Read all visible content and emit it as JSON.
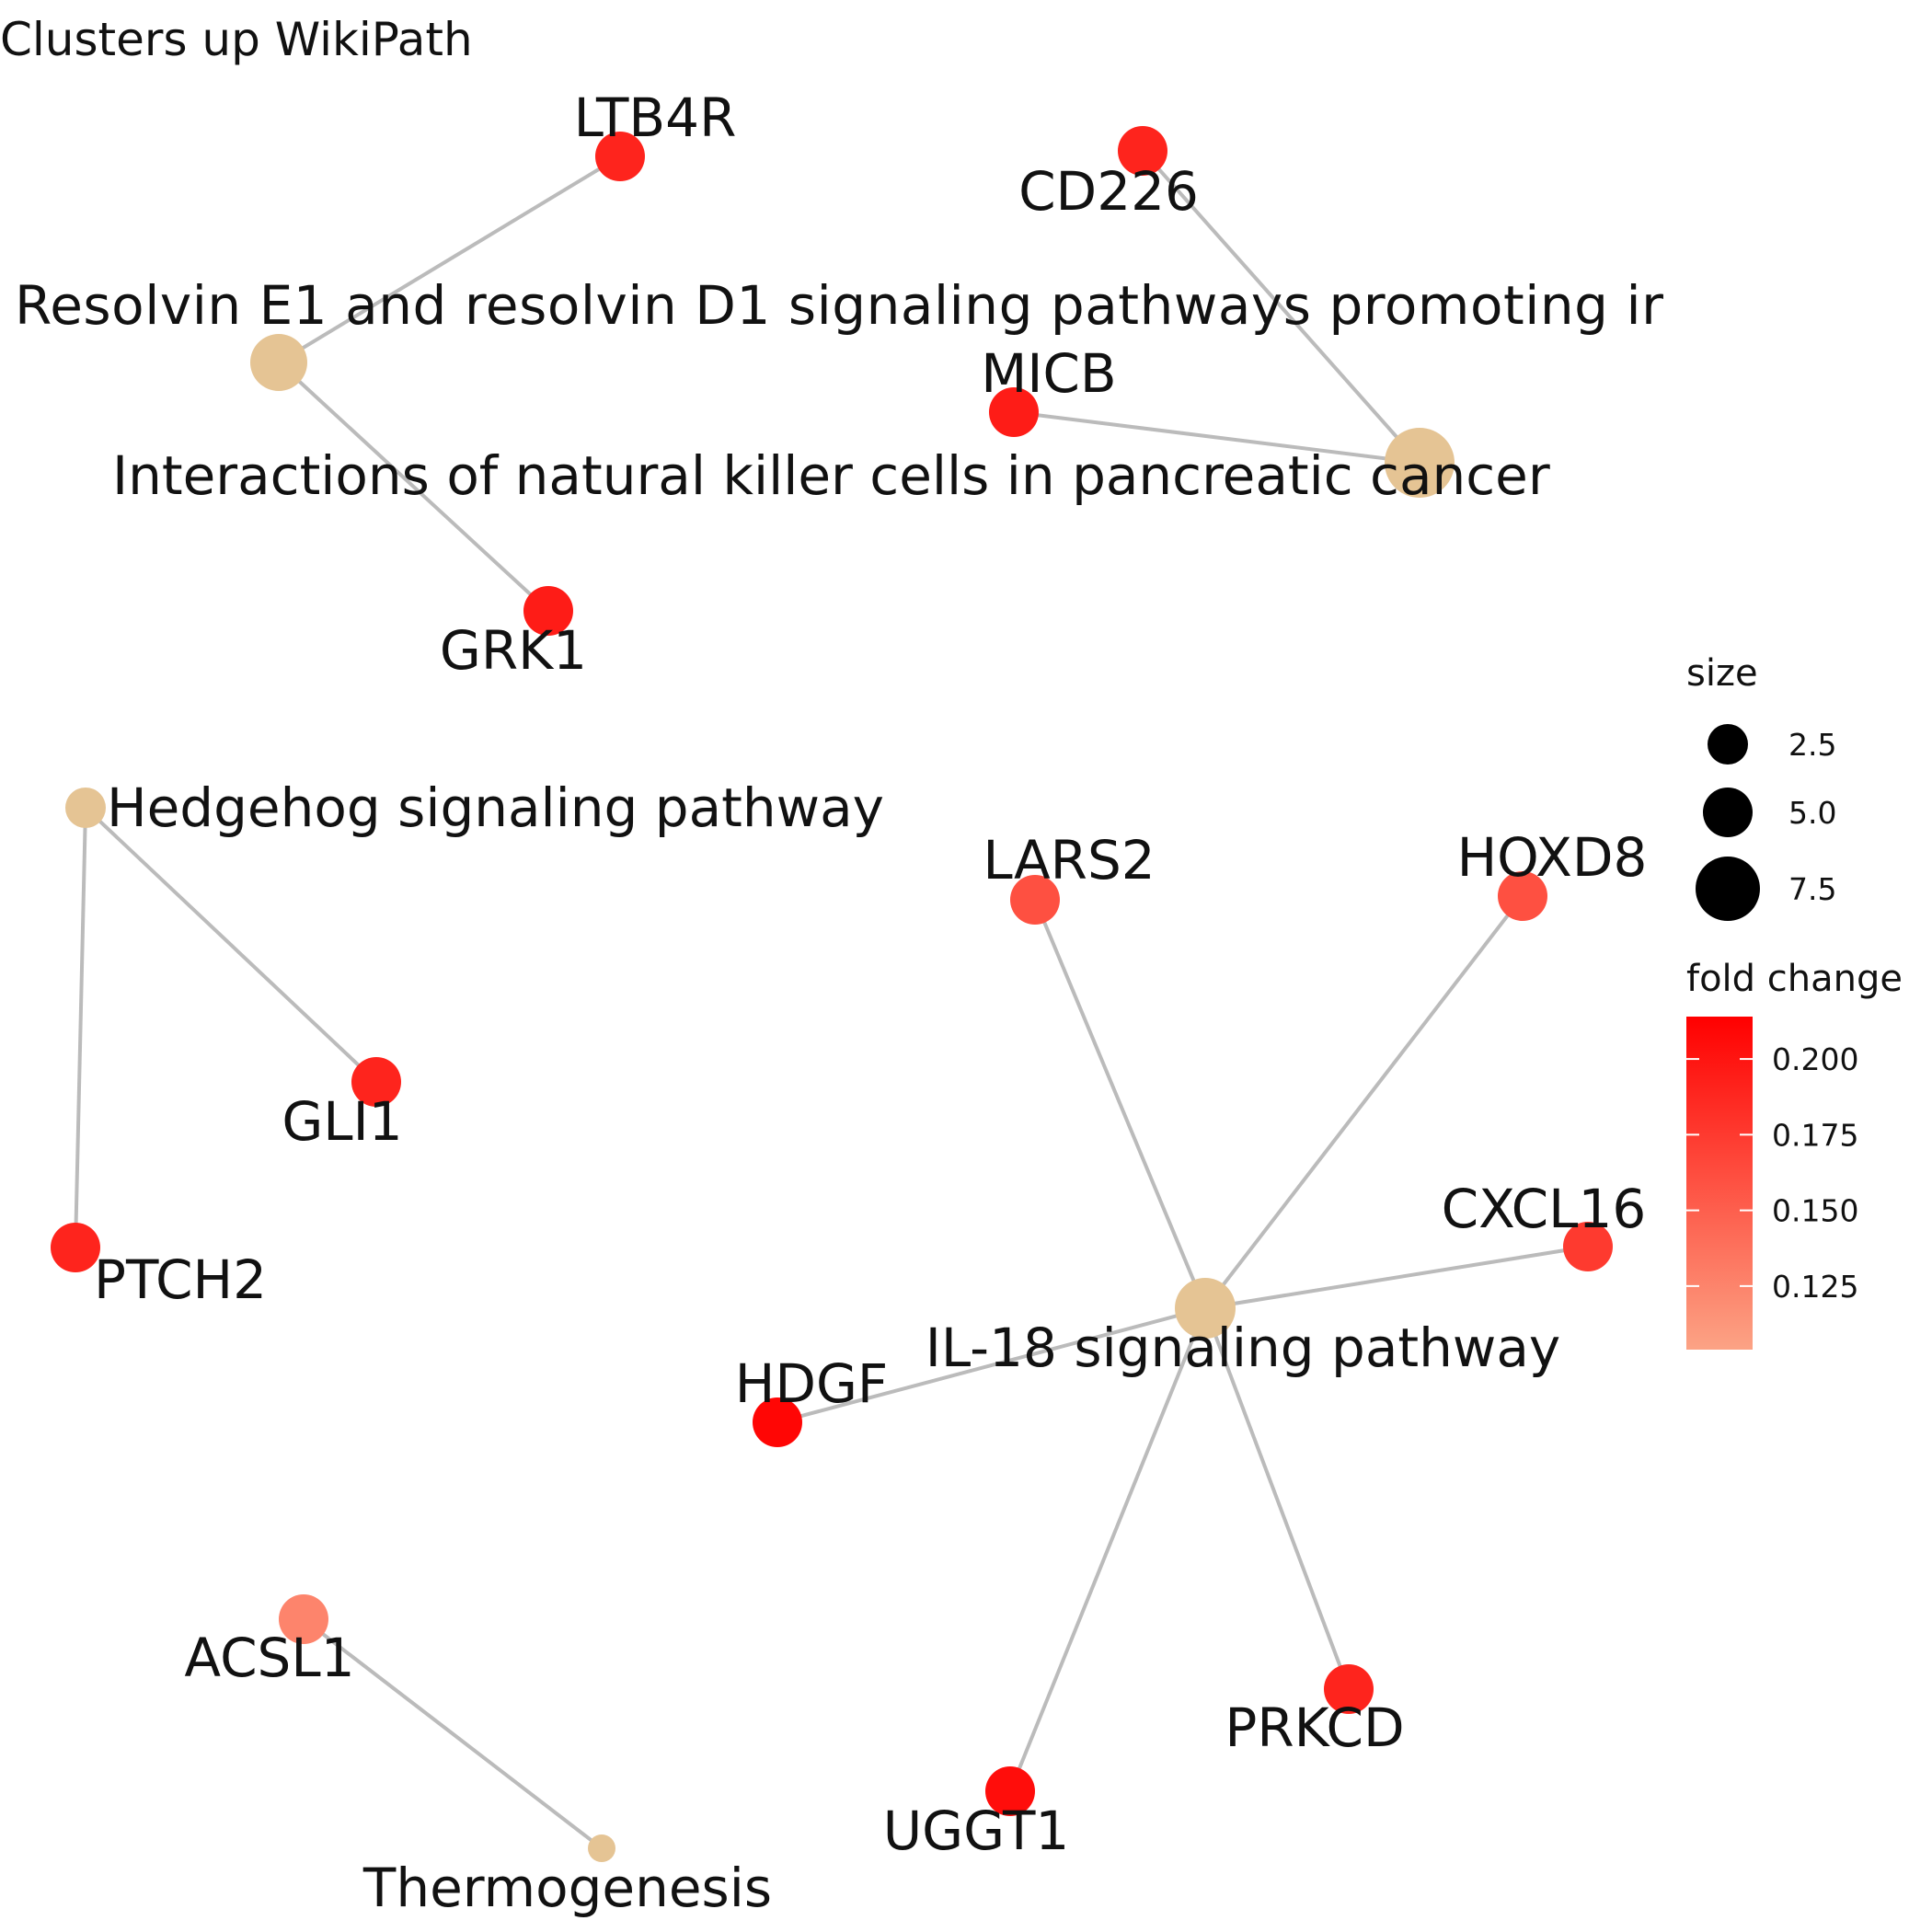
{
  "title": "Clusters up WikiPath",
  "colors": {
    "pathway_node": "#E5C494",
    "edge": "#BBBBBB",
    "fc_high": "#FF0000",
    "fc_low": "#FCA385",
    "size_legend_dot": "#000000"
  },
  "nodes": [
    {
      "id": "resolvin",
      "label": "Resolvin E1 and resolvin D1 signaling pathways promoting ir",
      "type": "pathway",
      "size": 4
    },
    {
      "id": "ltb4r",
      "label": "LTB4R",
      "type": "gene",
      "fold_change": 0.19
    },
    {
      "id": "grk1",
      "label": "GRK1",
      "type": "gene",
      "fold_change": 0.195
    },
    {
      "id": "nk_pancreatic",
      "label": "Interactions of natural killer cells in pancreatic cancer",
      "type": "pathway",
      "size": 6
    },
    {
      "id": "cd226",
      "label": "CD226",
      "type": "gene",
      "fold_change": 0.19
    },
    {
      "id": "micb",
      "label": "MICB",
      "type": "gene",
      "fold_change": 0.195
    },
    {
      "id": "hedgehog",
      "label": "Hedgehog signaling pathway",
      "type": "pathway",
      "size": 2
    },
    {
      "id": "gli1",
      "label": "GLI1",
      "type": "gene",
      "fold_change": 0.19
    },
    {
      "id": "ptch2",
      "label": "PTCH2",
      "type": "gene",
      "fold_change": 0.19
    },
    {
      "id": "il18",
      "label": "IL-18 signaling pathway",
      "type": "pathway",
      "size": 4
    },
    {
      "id": "lars2",
      "label": "LARS2",
      "type": "gene",
      "fold_change": 0.16
    },
    {
      "id": "hoxd8",
      "label": "HOXD8",
      "type": "gene",
      "fold_change": 0.16
    },
    {
      "id": "cxcl16",
      "label": "CXCL16",
      "type": "gene",
      "fold_change": 0.175
    },
    {
      "id": "hdgf",
      "label": "HDGF",
      "type": "gene",
      "fold_change": 0.21
    },
    {
      "id": "prkcd",
      "label": "PRKCD",
      "type": "gene",
      "fold_change": 0.19
    },
    {
      "id": "uggt1",
      "label": "UGGT1",
      "type": "gene",
      "fold_change": 0.205
    },
    {
      "id": "acsl1",
      "label": "ACSL1",
      "type": "gene",
      "fold_change": 0.125
    },
    {
      "id": "thermogenesis",
      "label": "Thermogenesis",
      "type": "pathway",
      "size": 1
    }
  ],
  "edges": [
    [
      "resolvin",
      "ltb4r"
    ],
    [
      "resolvin",
      "grk1"
    ],
    [
      "nk_pancreatic",
      "cd226"
    ],
    [
      "nk_pancreatic",
      "micb"
    ],
    [
      "hedgehog",
      "gli1"
    ],
    [
      "hedgehog",
      "ptch2"
    ],
    [
      "il18",
      "lars2"
    ],
    [
      "il18",
      "hoxd8"
    ],
    [
      "il18",
      "cxcl16"
    ],
    [
      "il18",
      "hdgf"
    ],
    [
      "il18",
      "prkcd"
    ],
    [
      "il18",
      "uggt1"
    ],
    [
      "acsl1",
      "thermogenesis"
    ]
  ],
  "legend": {
    "size_title": "size",
    "size_entries": [
      {
        "value": 2.5,
        "label": "2.5"
      },
      {
        "value": 5.0,
        "label": "5.0"
      },
      {
        "value": 7.5,
        "label": "7.5"
      }
    ],
    "fold_title": "fold change",
    "fold_range": [
      0.104,
      0.214
    ],
    "fold_ticks": [
      {
        "value": 0.2,
        "label": "0.200"
      },
      {
        "value": 0.175,
        "label": "0.175"
      },
      {
        "value": 0.15,
        "label": "0.150"
      },
      {
        "value": 0.125,
        "label": "0.125"
      }
    ]
  }
}
